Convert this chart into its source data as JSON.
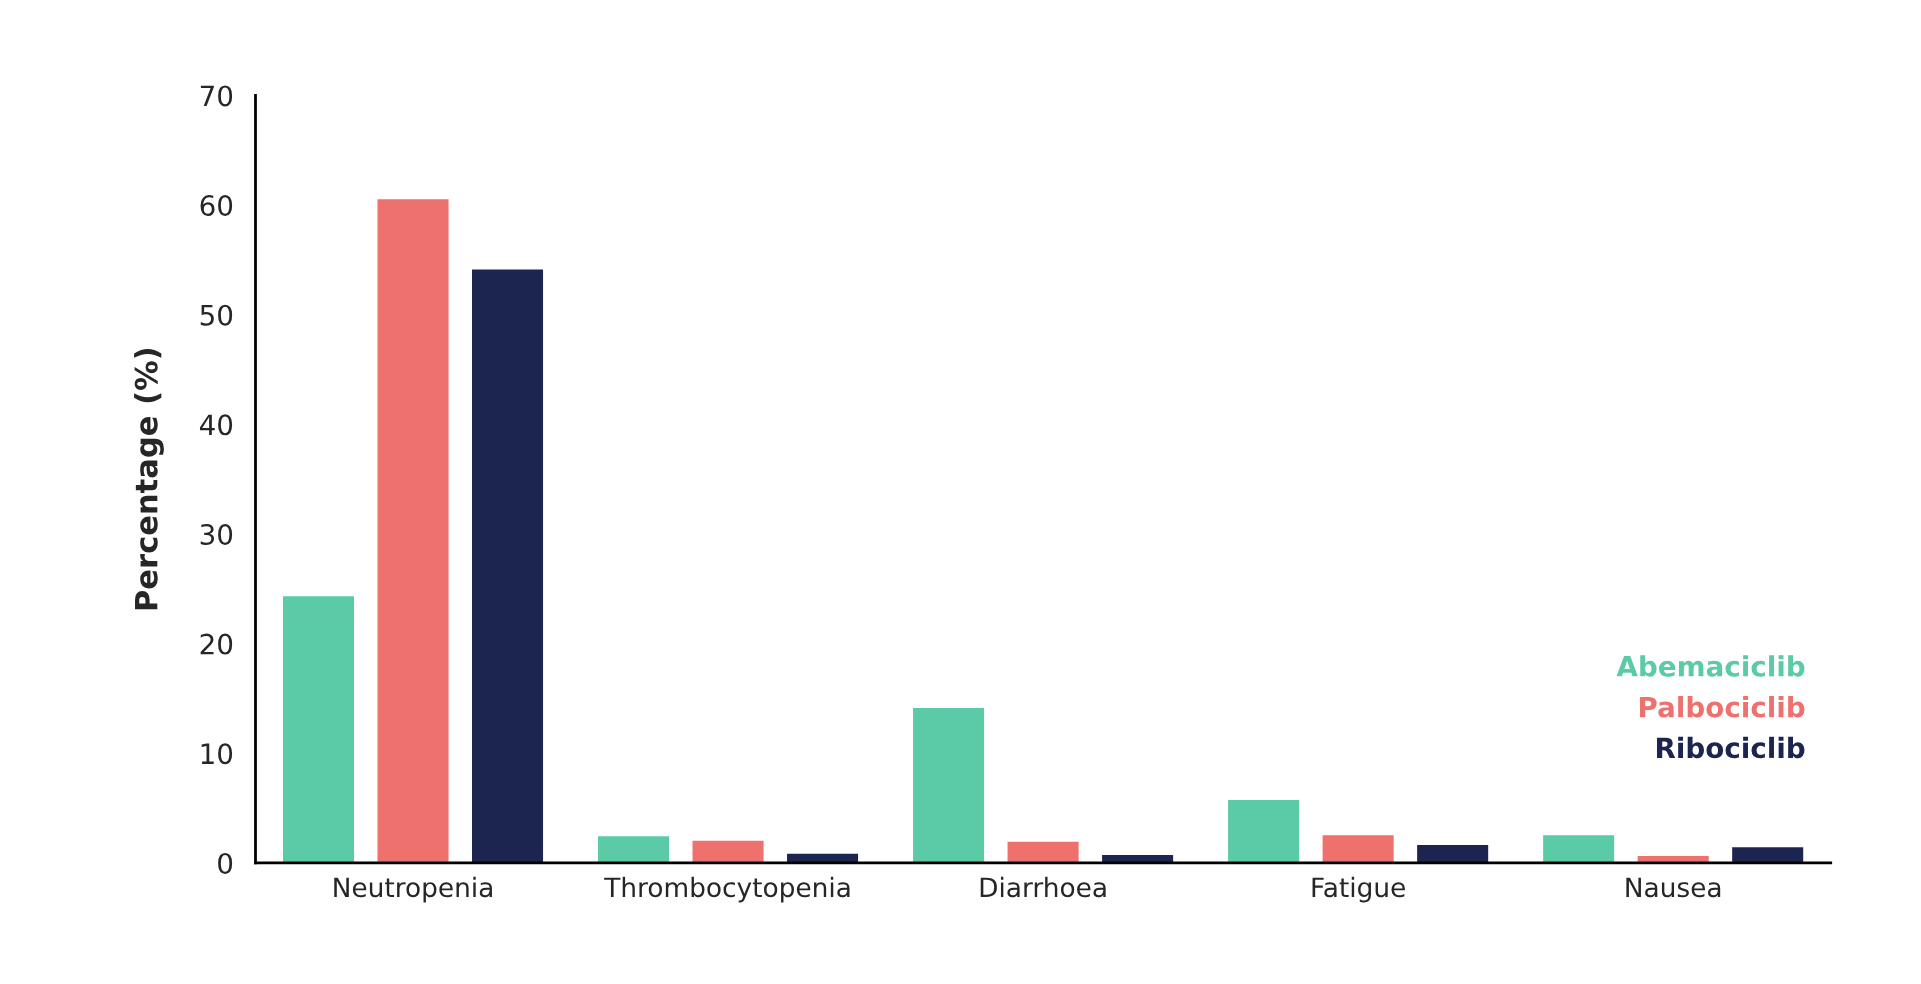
{
  "chart_data": {
    "type": "bar",
    "ylabel": "Percentage (%)",
    "categories": [
      "Neutropenia",
      "Thrombocytopenia",
      "Diarrhoea",
      "Fatigue",
      "Nausea"
    ],
    "series": [
      {
        "name": "Abemaciclib",
        "color": "#5bcaa6",
        "values": [
          24.4,
          2.5,
          14.2,
          5.8,
          2.6
        ]
      },
      {
        "name": "Palbociclib",
        "color": "#ef716d",
        "values": [
          60.6,
          2.1,
          2.0,
          2.6,
          0.7
        ]
      },
      {
        "name": "Ribociclib",
        "color": "#1c2550",
        "values": [
          54.2,
          0.9,
          0.8,
          1.7,
          1.5
        ]
      }
    ],
    "ylim": [
      0,
      70
    ],
    "yticks": [
      0,
      10,
      20,
      30,
      40,
      50,
      60,
      70
    ],
    "grid": false,
    "legend": "right"
  }
}
